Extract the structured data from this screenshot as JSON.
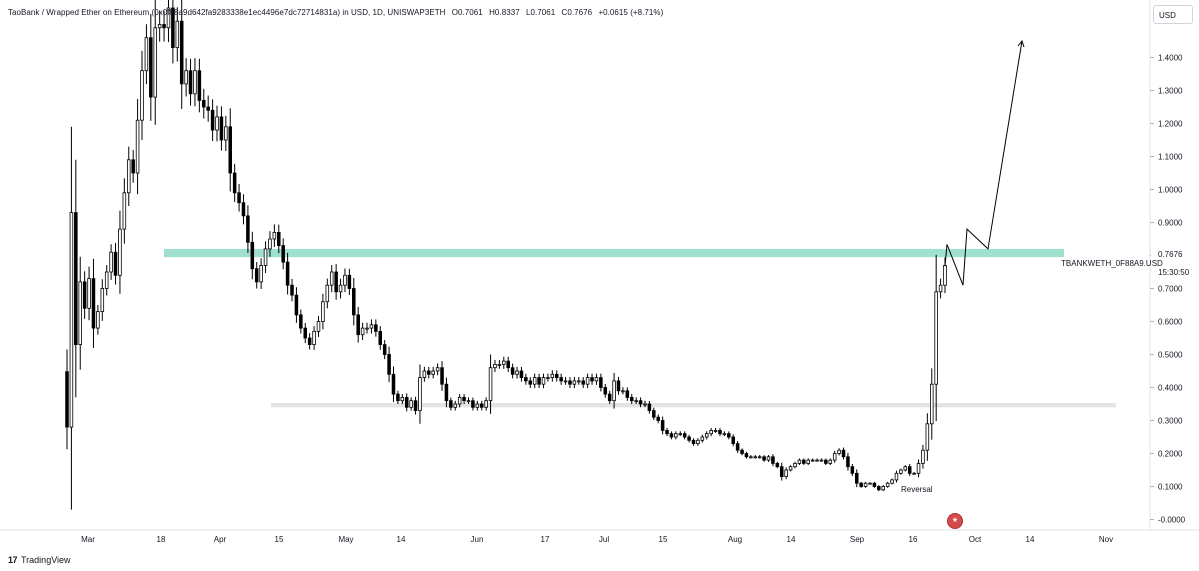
{
  "header": {
    "symbol": "TaoBank / Wrapped Ether on Ethereum (0x0f88a9d642fa9283338e1ec4496e7dc72714831a) in USD, 1D, UNISWAP3ETH",
    "open": "O0.7061",
    "high": "H0.8337",
    "low": "L0.7061",
    "close": "C0.7676",
    "change": "+0.0615 (+8.71%)"
  },
  "currency": "USD",
  "footer_brand": "TradingView",
  "price_label": {
    "value": "0.7676",
    "symbol": "TBANKWETH_0F88A9.USD",
    "time": "15:30:50"
  },
  "colors": {
    "candle": "#000000",
    "resistance_band": "#9fe0cf",
    "support_band": "#e3e3e3",
    "projection": "#000000",
    "flag": "#d54a4a"
  },
  "chart_data": {
    "type": "candlestick",
    "y_axis": {
      "ticks": [
        1.4,
        1.3,
        1.2,
        1.1,
        1.0,
        0.9,
        0.8,
        0.7,
        0.6,
        0.5,
        0.4,
        0.3,
        0.2,
        0.1,
        0.0
      ],
      "tick_labels": [
        "1.4000",
        "1.3000",
        "1.2000",
        "1.1000",
        "1.0000",
        "0.9000",
        "0.8000",
        "0.7000",
        "0.6000",
        "0.5000",
        "0.4000",
        "0.3000",
        "0.2000",
        "0.1000",
        "-0.0000"
      ],
      "range": [
        -0.02,
        1.58
      ]
    },
    "x_axis": {
      "labels": [
        "Mar",
        "18",
        "Apr",
        "15",
        "May",
        "14",
        "Jun",
        "17",
        "Jul",
        "15",
        "Aug",
        "14",
        "Sep",
        "16",
        "Oct",
        "14",
        "Nov"
      ]
    },
    "closes": [
      0.28,
      0.93,
      0.53,
      0.72,
      0.64,
      0.73,
      0.58,
      0.63,
      0.7,
      0.75,
      0.81,
      0.74,
      0.88,
      0.99,
      1.09,
      1.05,
      1.21,
      1.36,
      1.46,
      1.28,
      1.49,
      1.5,
      1.49,
      1.55,
      1.43,
      1.51,
      1.32,
      1.36,
      1.29,
      1.36,
      1.27,
      1.25,
      1.24,
      1.18,
      1.22,
      1.15,
      1.19,
      1.05,
      0.99,
      0.96,
      0.92,
      0.84,
      0.76,
      0.72,
      0.77,
      0.82,
      0.85,
      0.87,
      0.83,
      0.78,
      0.71,
      0.68,
      0.62,
      0.58,
      0.55,
      0.53,
      0.57,
      0.6,
      0.66,
      0.71,
      0.75,
      0.69,
      0.71,
      0.74,
      0.7,
      0.62,
      0.56,
      0.58,
      0.58,
      0.59,
      0.57,
      0.53,
      0.5,
      0.44,
      0.38,
      0.36,
      0.37,
      0.34,
      0.36,
      0.33,
      0.43,
      0.45,
      0.44,
      0.45,
      0.46,
      0.41,
      0.36,
      0.34,
      0.35,
      0.37,
      0.36,
      0.36,
      0.34,
      0.35,
      0.34,
      0.36,
      0.46,
      0.47,
      0.47,
      0.48,
      0.46,
      0.44,
      0.45,
      0.43,
      0.42,
      0.41,
      0.43,
      0.41,
      0.43,
      0.43,
      0.44,
      0.43,
      0.42,
      0.42,
      0.41,
      0.42,
      0.42,
      0.41,
      0.43,
      0.42,
      0.43,
      0.4,
      0.38,
      0.36,
      0.42,
      0.39,
      0.39,
      0.37,
      0.36,
      0.36,
      0.35,
      0.35,
      0.33,
      0.31,
      0.3,
      0.27,
      0.26,
      0.25,
      0.26,
      0.26,
      0.25,
      0.24,
      0.23,
      0.24,
      0.25,
      0.26,
      0.27,
      0.27,
      0.26,
      0.26,
      0.25,
      0.23,
      0.21,
      0.2,
      0.19,
      0.19,
      0.19,
      0.19,
      0.18,
      0.19,
      0.17,
      0.16,
      0.13,
      0.15,
      0.16,
      0.17,
      0.18,
      0.17,
      0.18,
      0.18,
      0.18,
      0.18,
      0.17,
      0.18,
      0.2,
      0.21,
      0.19,
      0.16,
      0.14,
      0.11,
      0.1,
      0.11,
      0.11,
      0.1,
      0.09,
      0.1,
      0.11,
      0.12,
      0.14,
      0.15,
      0.16,
      0.14,
      0.14,
      0.17,
      0.21,
      0.29,
      0.41,
      0.69,
      0.71,
      0.77
    ],
    "resistance_zone": [
      0.795,
      0.82
    ],
    "support_zone": [
      0.34,
      0.353
    ],
    "projection_path": [
      [
        0.7676,
        null
      ],
      [
        0.8337,
        null
      ],
      [
        0.71,
        null
      ],
      [
        0.88,
        null
      ],
      [
        0.82,
        null
      ],
      [
        1.45,
        null
      ]
    ],
    "annotations": [
      "Reversal"
    ]
  }
}
